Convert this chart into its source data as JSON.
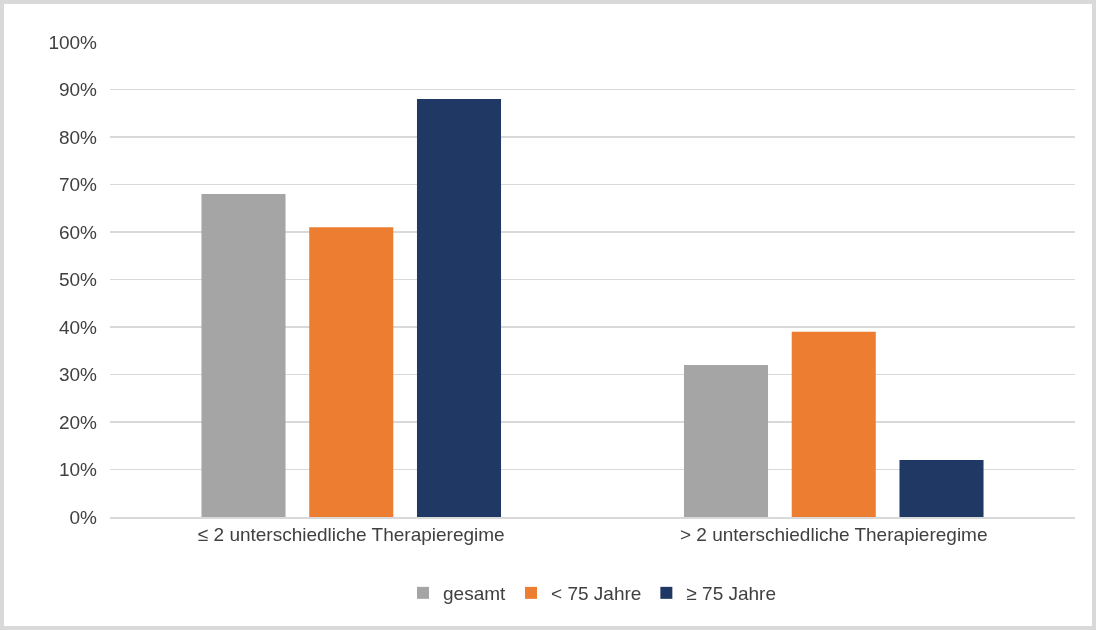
{
  "chart_data": {
    "type": "bar",
    "categories": [
      "≤ 2 unterschiedliche Therapieregime",
      "> 2 unterschiedliche Therapieregime"
    ],
    "series": [
      {
        "name": "gesamt",
        "color": "#a5a5a5",
        "values": [
          68,
          32
        ]
      },
      {
        "name": "< 75 Jahre",
        "color": "#ed7d31",
        "values": [
          61,
          39
        ]
      },
      {
        "name": "≥ 75 Jahre",
        "color": "#203864",
        "values": [
          88,
          12
        ]
      }
    ],
    "ylim": [
      0,
      100
    ],
    "yticks": [
      {
        "value": 0,
        "label": "0%"
      },
      {
        "value": 10,
        "label": "10%"
      },
      {
        "value": 20,
        "label": "20%"
      },
      {
        "value": 30,
        "label": "30%"
      },
      {
        "value": 40,
        "label": "40%"
      },
      {
        "value": 50,
        "label": "50%"
      },
      {
        "value": 60,
        "label": "60%"
      },
      {
        "value": 70,
        "label": "70%"
      },
      {
        "value": 80,
        "label": "80%"
      },
      {
        "value": 90,
        "label": "90%"
      },
      {
        "value": 100,
        "label": "100%"
      }
    ],
    "grid": "y",
    "legend": "bottom"
  }
}
